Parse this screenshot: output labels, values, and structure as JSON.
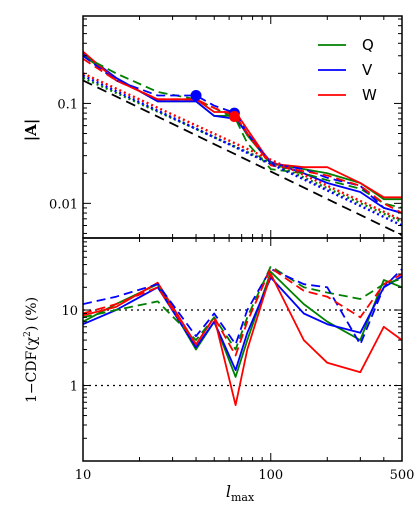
{
  "chart_data": {
    "type": "line",
    "xlabel": "l_max",
    "xlabel_main": "l",
    "xlabel_sub": "max",
    "xscale": "log",
    "xlim": [
      10,
      500
    ],
    "x_tick_labels": [
      "10",
      "100",
      "500"
    ],
    "x_ticks": [
      10,
      100,
      500
    ],
    "colors": {
      "Q": "#008000",
      "V": "#0000ff",
      "W": "#ff0000",
      "reference": "#000000"
    },
    "legend": {
      "placement": "top-right",
      "entries": [
        "Q",
        "V",
        "W"
      ]
    },
    "panels": [
      {
        "id": "top",
        "ylabel": "|A|",
        "yscale": "log",
        "ylim": [
          0.0045,
          0.75
        ],
        "y_ticks": [
          0.01,
          0.1
        ],
        "y_tick_labels": [
          "0.01",
          "0.1"
        ],
        "series": [
          {
            "name": "Q",
            "style": "solid",
            "x": [
              10,
              15,
              25,
              40,
              50,
              65,
              75,
              100,
              150,
              200,
              300,
              400,
              500
            ],
            "y": [
              0.3,
              0.18,
              0.105,
              0.105,
              0.075,
              0.075,
              0.048,
              0.025,
              0.022,
              0.02,
              0.016,
              0.011,
              0.011
            ]
          },
          {
            "name": "V",
            "style": "solid",
            "x": [
              10,
              15,
              25,
              40,
              50,
              65,
              75,
              100,
              150,
              200,
              300,
              400,
              500
            ],
            "y": [
              0.32,
              0.18,
              0.105,
              0.105,
              0.075,
              0.07,
              0.05,
              0.026,
              0.02,
              0.016,
              0.013,
              0.009,
              0.008
            ]
          },
          {
            "name": "W",
            "style": "solid",
            "x": [
              10,
              15,
              25,
              40,
              50,
              65,
              75,
              100,
              150,
              200,
              300,
              400,
              500
            ],
            "y": [
              0.33,
              0.17,
              0.11,
              0.11,
              0.082,
              0.082,
              0.055,
              0.025,
              0.023,
              0.023,
              0.016,
              0.0115,
              0.0115
            ]
          },
          {
            "name": "Q",
            "style": "dashed",
            "x": [
              10,
              15,
              25,
              40,
              50,
              65,
              75,
              100,
              150,
              200,
              300,
              400,
              500
            ],
            "y": [
              0.3,
              0.2,
              0.13,
              0.11,
              0.09,
              0.07,
              0.04,
              0.022,
              0.02,
              0.017,
              0.014,
              0.01,
              0.009
            ]
          },
          {
            "name": "V",
            "style": "dashed",
            "x": [
              10,
              15,
              25,
              40,
              50,
              65,
              75,
              100,
              150,
              200,
              300,
              400,
              500
            ],
            "y": [
              0.3,
              0.17,
              0.12,
              0.12,
              0.095,
              0.08,
              0.05,
              0.025,
              0.022,
              0.018,
              0.015,
              0.009,
              0.008
            ]
          },
          {
            "name": "W",
            "style": "dashed",
            "x": [
              10,
              15,
              25,
              40,
              50,
              65,
              75,
              100,
              150,
              200,
              300,
              400,
              500
            ],
            "y": [
              0.28,
              0.17,
              0.11,
              0.11,
              0.09,
              0.075,
              0.05,
              0.024,
              0.021,
              0.019,
              0.015,
              0.01,
              0.008
            ]
          },
          {
            "name": "Q",
            "style": "dotted",
            "x": [
              10,
              500
            ],
            "y": [
              0.18,
              0.0065
            ]
          },
          {
            "name": "V",
            "style": "dotted",
            "x": [
              10,
              500
            ],
            "y": [
              0.19,
              0.006
            ]
          },
          {
            "name": "W",
            "style": "dotted",
            "x": [
              10,
              500
            ],
            "y": [
              0.2,
              0.0068
            ]
          },
          {
            "name": "",
            "style": "reference-dashed",
            "x": [
              10,
              500
            ],
            "y": [
              0.17,
              0.0048
            ]
          }
        ],
        "markers": [
          {
            "series": "V",
            "x": 40,
            "y": 0.12
          },
          {
            "series": "V",
            "x": 64,
            "y": 0.08
          },
          {
            "series": "W",
            "x": 64,
            "y": 0.074
          }
        ]
      },
      {
        "id": "bottom",
        "ylabel": "1−CDF(χ²) (%)",
        "ylabel_parts": [
          "1−CDF(χ",
          "2",
          ") (%)"
        ],
        "yscale": "log",
        "ylim": [
          0.1,
          90
        ],
        "y_ticks": [
          1,
          10
        ],
        "y_tick_labels": [
          "1",
          "10"
        ],
        "hlines": [
          1,
          10
        ],
        "series": [
          {
            "name": "Q",
            "style": "solid",
            "x": [
              10,
              15,
              25,
              40,
              50,
              65,
              75,
              100,
              150,
              200,
              300,
              400,
              500
            ],
            "y": [
              7,
              12,
              22,
              3,
              7,
              1.3,
              4,
              32,
              12,
              7,
              4,
              25,
              20
            ]
          },
          {
            "name": "V",
            "style": "solid",
            "x": [
              10,
              15,
              25,
              40,
              50,
              65,
              75,
              100,
              150,
              200,
              300,
              400,
              500
            ],
            "y": [
              6.5,
              10,
              20,
              3.2,
              7,
              1.6,
              5,
              27,
              9,
              6.5,
              5,
              20,
              28
            ]
          },
          {
            "name": "W",
            "style": "solid",
            "x": [
              10,
              15,
              25,
              40,
              50,
              65,
              75,
              100,
              150,
              200,
              300,
              400,
              500
            ],
            "y": [
              8.5,
              11,
              23,
              3.5,
              8,
              0.55,
              3,
              30,
              4,
              2,
              1.5,
              6,
              4
            ]
          },
          {
            "name": "Q",
            "style": "dashed",
            "x": [
              10,
              15,
              25,
              40,
              50,
              65,
              75,
              100,
              150,
              200,
              300,
              400,
              500
            ],
            "y": [
              8,
              10,
              13,
              4,
              8,
              3,
              8,
              38,
              20,
              17,
              14,
              22,
              26
            ]
          },
          {
            "name": "V",
            "style": "dashed",
            "x": [
              10,
              15,
              25,
              40,
              50,
              65,
              75,
              100,
              150,
              200,
              300,
              400,
              500
            ],
            "y": [
              12,
              15,
              22,
              4.5,
              9,
              3.5,
              10,
              35,
              22,
              20,
              3.5,
              20,
              35
            ]
          },
          {
            "name": "W",
            "style": "dashed",
            "x": [
              10,
              15,
              25,
              40,
              50,
              65,
              75,
              100,
              150,
              200,
              300,
              400,
              500
            ],
            "y": [
              9,
              12,
              20,
              3.5,
              8,
              2.5,
              7,
              36,
              18,
              15,
              8,
              22,
              30
            ]
          }
        ]
      }
    ]
  }
}
